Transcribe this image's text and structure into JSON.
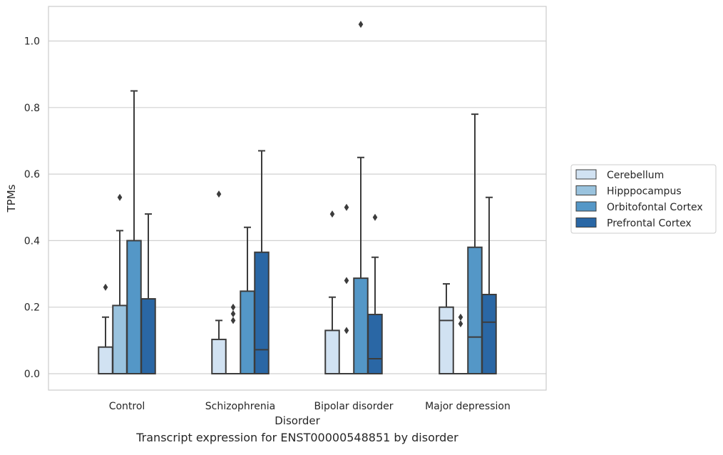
{
  "chart_data": {
    "type": "box",
    "title": "",
    "xlabel": "Disorder",
    "ylabel": "TPMs",
    "caption": "Transcript expression for ENST00000548851 by disorder",
    "categories": [
      "Control",
      "Schizophrenia",
      "Bipolar disorder",
      "Major depression"
    ],
    "ylim": [
      -0.05,
      1.1
    ],
    "yticks": [
      "0.0",
      "0.2",
      "0.4",
      "0.6",
      "0.8",
      "1.0"
    ],
    "grid": true,
    "legend_position": "right",
    "series": [
      {
        "name": "Cerebellum",
        "color": "#d1e2f2",
        "boxes": [
          {
            "q1": 0.0,
            "median": 0.0,
            "q3": 0.08,
            "whisker_low": 0.0,
            "whisker_high": 0.17,
            "outliers": [
              0.26
            ]
          },
          {
            "q1": 0.0,
            "median": 0.0,
            "q3": 0.103,
            "whisker_low": 0.0,
            "whisker_high": 0.16,
            "outliers": [
              0.54
            ]
          },
          {
            "q1": 0.0,
            "median": 0.0,
            "q3": 0.13,
            "whisker_low": 0.0,
            "whisker_high": 0.23,
            "outliers": [
              0.48
            ]
          },
          {
            "q1": 0.0,
            "median": 0.16,
            "q3": 0.2,
            "whisker_low": 0.0,
            "whisker_high": 0.27,
            "outliers": []
          }
        ]
      },
      {
        "name": "Hipppocampus",
        "color": "#9ac3de",
        "boxes": [
          {
            "q1": 0.0,
            "median": 0.0,
            "q3": 0.205,
            "whisker_low": 0.0,
            "whisker_high": 0.43,
            "outliers": [
              0.53
            ]
          },
          {
            "q1": 0.0,
            "median": 0.0,
            "q3": 0.0,
            "whisker_low": 0.0,
            "whisker_high": 0.0,
            "outliers": [
              0.16,
              0.18,
              0.2
            ]
          },
          {
            "q1": 0.0,
            "median": 0.0,
            "q3": 0.0,
            "whisker_low": 0.0,
            "whisker_high": 0.0,
            "outliers": [
              0.13,
              0.28,
              0.5
            ]
          },
          {
            "q1": 0.0,
            "median": 0.0,
            "q3": 0.0,
            "whisker_low": 0.0,
            "whisker_high": 0.0,
            "outliers": [
              0.15,
              0.17
            ]
          }
        ]
      },
      {
        "name": "Orbitofontal Cortex",
        "color": "#5497c7",
        "boxes": [
          {
            "q1": 0.0,
            "median": 0.0,
            "q3": 0.4,
            "whisker_low": 0.0,
            "whisker_high": 0.85,
            "outliers": []
          },
          {
            "q1": 0.0,
            "median": 0.0,
            "q3": 0.248,
            "whisker_low": 0.0,
            "whisker_high": 0.44,
            "outliers": []
          },
          {
            "q1": 0.0,
            "median": 0.0,
            "q3": 0.287,
            "whisker_low": 0.0,
            "whisker_high": 0.65,
            "outliers": [
              1.05
            ]
          },
          {
            "q1": 0.0,
            "median": 0.11,
            "q3": 0.38,
            "whisker_low": 0.0,
            "whisker_high": 0.78,
            "outliers": []
          }
        ]
      },
      {
        "name": "Prefrontal Cortex",
        "color": "#2a67a5",
        "boxes": [
          {
            "q1": 0.0,
            "median": 0.0,
            "q3": 0.225,
            "whisker_low": 0.0,
            "whisker_high": 0.48,
            "outliers": []
          },
          {
            "q1": 0.0,
            "median": 0.072,
            "q3": 0.365,
            "whisker_low": 0.0,
            "whisker_high": 0.67,
            "outliers": []
          },
          {
            "q1": 0.0,
            "median": 0.045,
            "q3": 0.178,
            "whisker_low": 0.0,
            "whisker_high": 0.35,
            "outliers": [
              0.47
            ]
          },
          {
            "q1": 0.0,
            "median": 0.155,
            "q3": 0.238,
            "whisker_low": 0.0,
            "whisker_high": 0.53,
            "outliers": []
          }
        ]
      }
    ]
  }
}
